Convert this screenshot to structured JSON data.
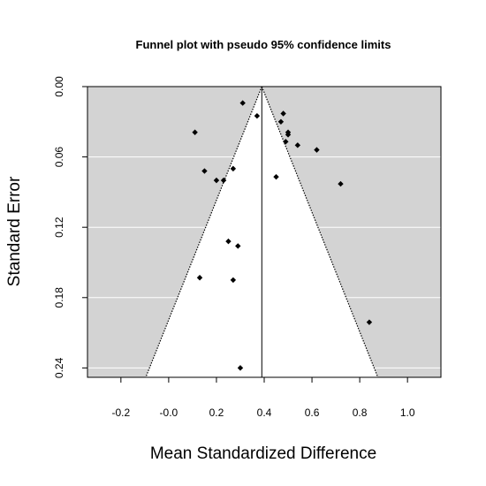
{
  "chart_data": {
    "type": "scatter",
    "title": "Funnel plot with pseudo 95% confidence limits",
    "xlabel": "Mean Standardized Difference",
    "ylabel": "Standard Error",
    "xlim": [
      -0.34,
      1.14
    ],
    "ylim": [
      0.0,
      0.248
    ],
    "y_reversed": true,
    "x_ticks": [
      -0.2,
      0.0,
      0.2,
      0.4,
      0.6,
      0.8,
      1.0
    ],
    "x_tick_labels": [
      "-0.2",
      "-0.0",
      "0.2",
      "0.4",
      "0.6",
      "0.8",
      "1.0"
    ],
    "y_ticks": [
      0.0,
      0.06,
      0.12,
      0.18,
      0.24
    ],
    "y_tick_labels": [
      "0.00",
      "0.06",
      "0.12",
      "0.18",
      "0.24"
    ],
    "summary_effect": 0.39,
    "confidence_level": 0.95,
    "grid": "horizontal",
    "region_colors": {
      "outside": "#d3d3d3",
      "inside": "#ffffff",
      "grid": "#ffffff",
      "points": "#000000"
    },
    "points": [
      {
        "x": 0.31,
        "y": 0.014
      },
      {
        "x": 0.37,
        "y": 0.025
      },
      {
        "x": 0.48,
        "y": 0.023
      },
      {
        "x": 0.47,
        "y": 0.03
      },
      {
        "x": 0.11,
        "y": 0.039
      },
      {
        "x": 0.5,
        "y": 0.039
      },
      {
        "x": 0.5,
        "y": 0.041
      },
      {
        "x": 0.49,
        "y": 0.047
      },
      {
        "x": 0.54,
        "y": 0.05
      },
      {
        "x": 0.62,
        "y": 0.054
      },
      {
        "x": 0.15,
        "y": 0.072
      },
      {
        "x": 0.27,
        "y": 0.07
      },
      {
        "x": 0.2,
        "y": 0.08
      },
      {
        "x": 0.23,
        "y": 0.08
      },
      {
        "x": 0.45,
        "y": 0.077
      },
      {
        "x": 0.72,
        "y": 0.083
      },
      {
        "x": 0.25,
        "y": 0.132
      },
      {
        "x": 0.29,
        "y": 0.136
      },
      {
        "x": 0.13,
        "y": 0.163
      },
      {
        "x": 0.27,
        "y": 0.165
      },
      {
        "x": 0.84,
        "y": 0.201
      },
      {
        "x": 0.3,
        "y": 0.24
      }
    ]
  }
}
